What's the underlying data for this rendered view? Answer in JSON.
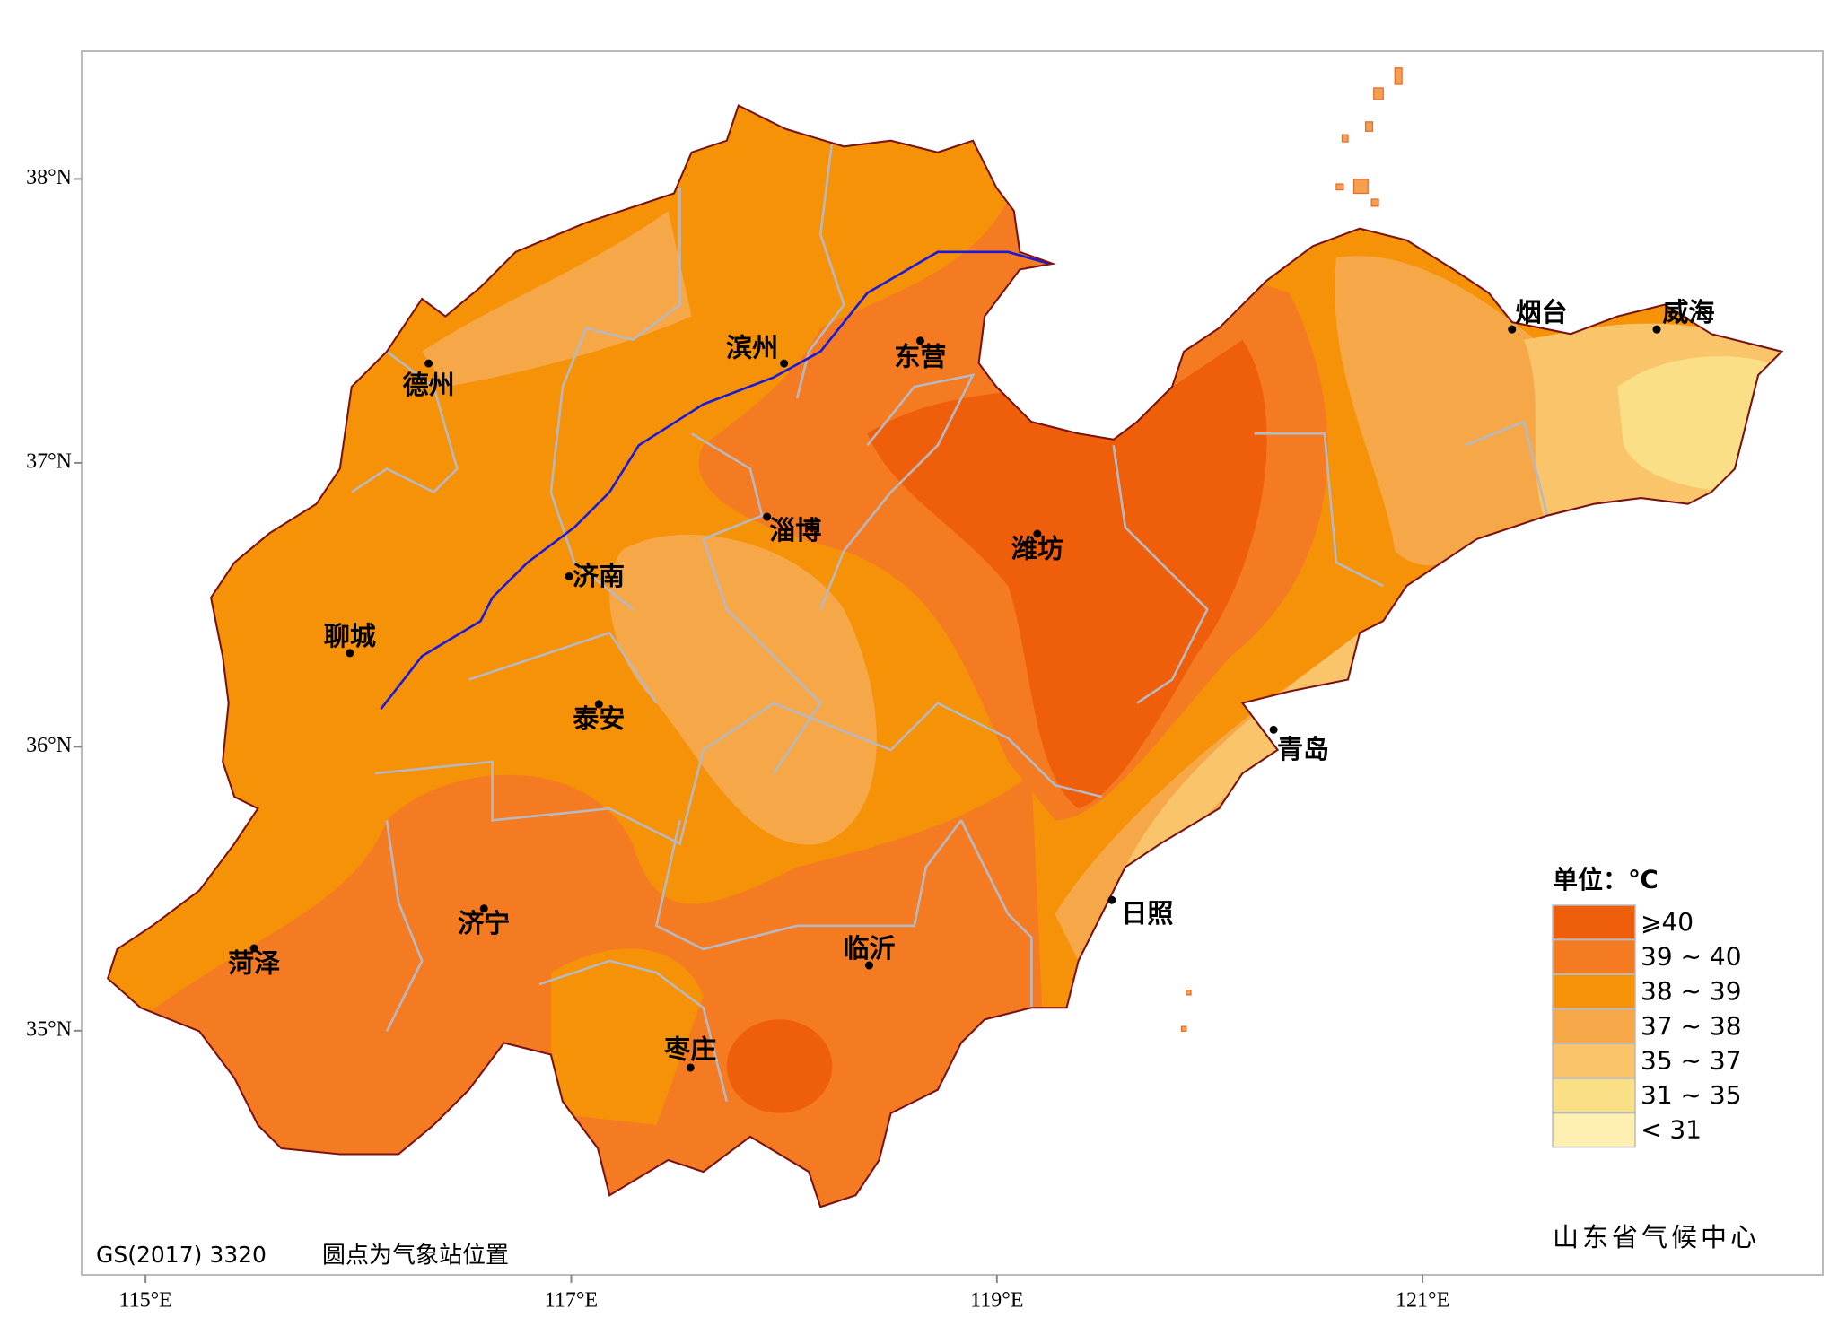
{
  "map": {
    "xlim": [
      114.7,
      122.88
    ],
    "ylim": [
      34.14,
      38.45
    ],
    "xticks": [
      {
        "value": 115,
        "label": "115°E"
      },
      {
        "value": 117,
        "label": "117°E"
      },
      {
        "value": 119,
        "label": "119°E"
      },
      {
        "value": 121,
        "label": "121°E"
      }
    ],
    "yticks": [
      {
        "value": 38,
        "label": "38°N"
      },
      {
        "value": 37,
        "label": "37°N"
      },
      {
        "value": 36,
        "label": "36°N"
      },
      {
        "value": 35,
        "label": "35°N"
      }
    ],
    "cities": [
      {
        "name": "德州",
        "lon": 116.33,
        "lat": 37.35
      },
      {
        "name": "滨州",
        "lon": 118.0,
        "lat": 37.35
      },
      {
        "name": "东营",
        "lon": 118.64,
        "lat": 37.43
      },
      {
        "name": "淄博",
        "lon": 117.92,
        "lat": 36.81
      },
      {
        "name": "济南",
        "lon": 116.99,
        "lat": 36.6
      },
      {
        "name": "潍坊",
        "lon": 119.19,
        "lat": 36.75
      },
      {
        "name": "聊城",
        "lon": 115.96,
        "lat": 36.33
      },
      {
        "name": "泰安",
        "lon": 117.13,
        "lat": 36.15
      },
      {
        "name": "青岛",
        "lon": 120.3,
        "lat": 36.06
      },
      {
        "name": "烟台",
        "lon": 121.42,
        "lat": 37.47
      },
      {
        "name": "威海",
        "lon": 122.1,
        "lat": 37.47
      },
      {
        "name": "日照",
        "lon": 119.54,
        "lat": 35.46
      },
      {
        "name": "济宁",
        "lon": 116.59,
        "lat": 35.43
      },
      {
        "name": "菏泽",
        "lon": 115.51,
        "lat": 35.29
      },
      {
        "name": "临沂",
        "lon": 118.4,
        "lat": 35.23
      },
      {
        "name": "枣庄",
        "lon": 117.56,
        "lat": 34.87
      }
    ],
    "legend": {
      "title": "单位：℃",
      "items": [
        {
          "label": "⩾40",
          "color": "#ef5f0b"
        },
        {
          "label": "39 ~ 40",
          "color": "#f57b23"
        },
        {
          "label": "38 ~ 39",
          "color": "#f59208"
        },
        {
          "label": "37 ~ 38",
          "color": "#f6a848"
        },
        {
          "label": "35 ~ 37",
          "color": "#f9c46a"
        },
        {
          "label": "31 ~ 35",
          "color": "#fadf86"
        },
        {
          "label": "< 31",
          "color": "#fdf0b0"
        }
      ]
    },
    "footer": {
      "approval": "GS(2017) 3320",
      "note": "圆点为气象站位置",
      "source": "山东省气候中心"
    }
  }
}
